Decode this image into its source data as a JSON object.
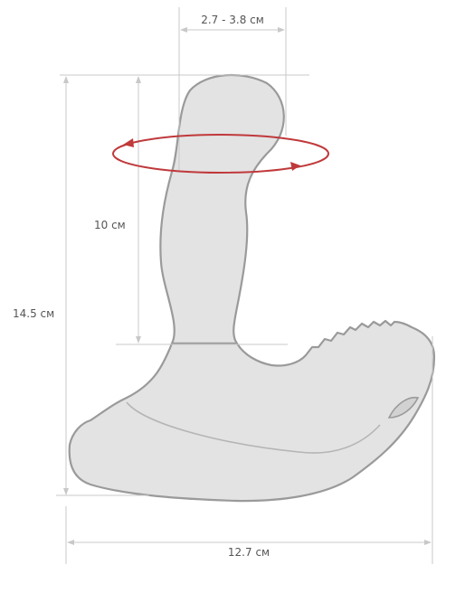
{
  "dimensions": {
    "diameter": "2.7 - 3.8 см",
    "insertable_length": "10 см",
    "total_height": "14.5 см",
    "total_width": "12.7 см"
  },
  "colors": {
    "body_fill": "#e3e3e3",
    "body_stroke": "#9a9a9a",
    "rotation_ring": "#c0393b",
    "guide_lines": "#c8c8c8"
  },
  "icons": {
    "rotation_ring": "rotation-arrows-icon"
  }
}
